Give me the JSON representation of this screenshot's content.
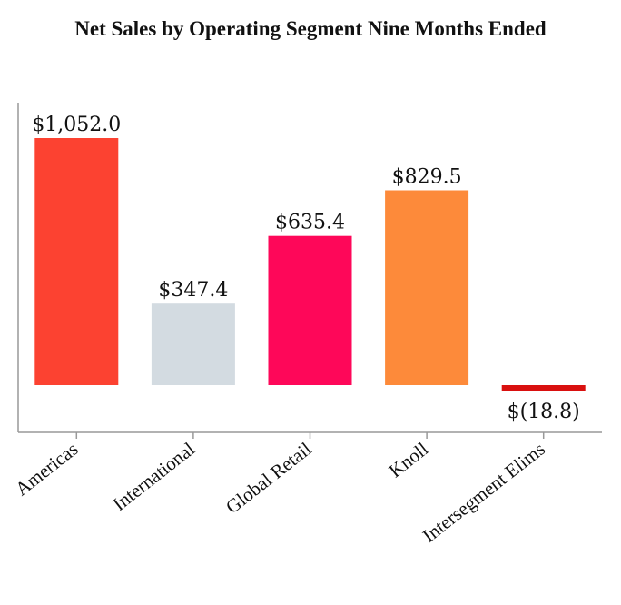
{
  "chart_data": {
    "type": "bar",
    "title": "Net Sales by Operating Segment Nine Months Ended",
    "categories": [
      "Americas",
      "International",
      "Global Retail",
      "Knoll",
      "Intersegment Elims"
    ],
    "values": [
      1052.0,
      347.4,
      635.4,
      829.5,
      -18.8
    ],
    "data_labels": [
      "$1,052.0",
      "$347.4",
      "$635.4",
      "$829.5",
      "$(18.8)"
    ],
    "colors": [
      "#fc4231",
      "#d3dbe1",
      "#fe0759",
      "#fd8a3a",
      "#d9100f"
    ],
    "xlabel": "",
    "ylabel": "",
    "ylim": [
      -200,
      1052
    ],
    "grid": false,
    "legend": "none"
  }
}
